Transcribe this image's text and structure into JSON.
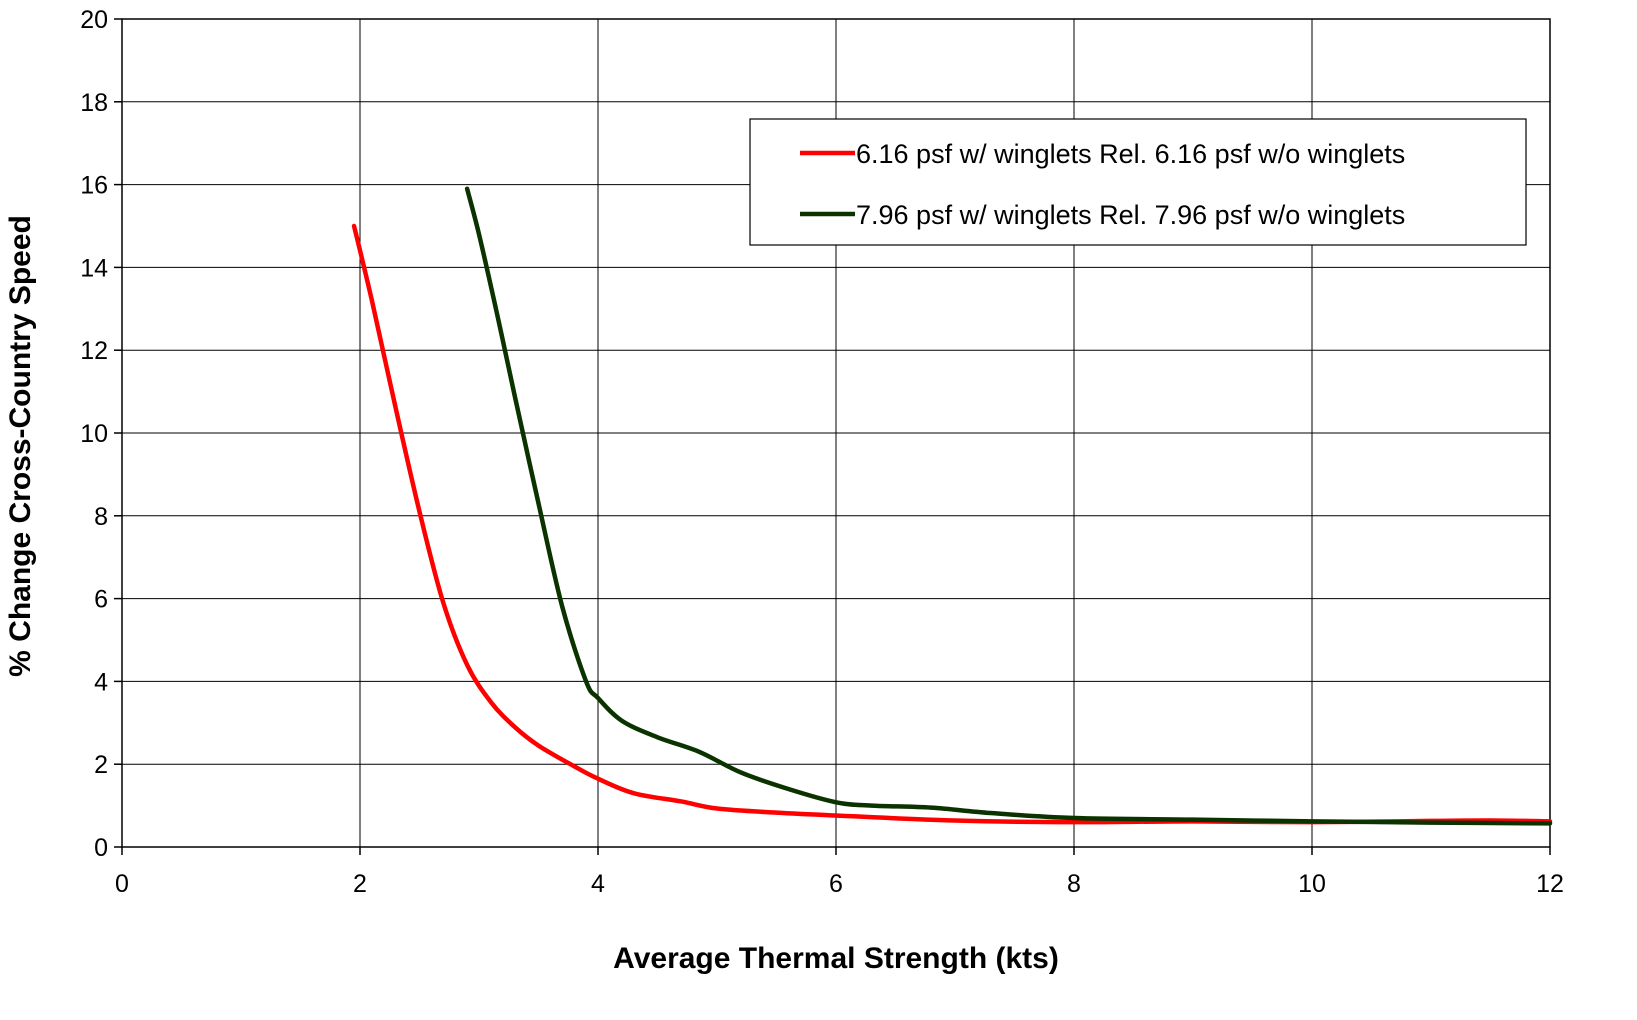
{
  "chart_data": {
    "type": "line",
    "title": "",
    "xlabel": "Average Thermal Strength (kts)",
    "ylabel": "% Change Cross-Country Speed",
    "xlim": [
      0,
      12
    ],
    "ylim": [
      0,
      20
    ],
    "x_ticks": [
      "0",
      "2",
      "4",
      "6",
      "8",
      "10",
      "12"
    ],
    "y_ticks": [
      "0",
      "2",
      "4",
      "6",
      "8",
      "10",
      "12",
      "14",
      "16",
      "18",
      "20"
    ],
    "grid": true,
    "legend_position": "top-right",
    "series": [
      {
        "name": "6.16 psf w/ winglets Rel. 6.16 psf w/o winglets",
        "color": "#ff0000",
        "points": [
          [
            1.95,
            15.0
          ],
          [
            2.1,
            13.2
          ],
          [
            2.3,
            10.6
          ],
          [
            2.5,
            8.1
          ],
          [
            2.7,
            5.9
          ],
          [
            2.9,
            4.4
          ],
          [
            3.1,
            3.5
          ],
          [
            3.3,
            2.9
          ],
          [
            3.5,
            2.45
          ],
          [
            3.8,
            1.95
          ],
          [
            4.0,
            1.65
          ],
          [
            4.3,
            1.3
          ],
          [
            4.7,
            1.1
          ],
          [
            5.0,
            0.93
          ],
          [
            5.5,
            0.83
          ],
          [
            6.0,
            0.76
          ],
          [
            7.0,
            0.64
          ],
          [
            8.0,
            0.6
          ],
          [
            9.0,
            0.62
          ],
          [
            10.0,
            0.6
          ],
          [
            11.0,
            0.63
          ],
          [
            11.5,
            0.64
          ],
          [
            12.0,
            0.62
          ]
        ]
      },
      {
        "name": "7.96 psf w/ winglets Rel. 7.96 psf w/o winglets",
        "color": "#0a3300",
        "points": [
          [
            2.9,
            15.9
          ],
          [
            3.0,
            14.8
          ],
          [
            3.15,
            12.9
          ],
          [
            3.3,
            10.9
          ],
          [
            3.5,
            8.3
          ],
          [
            3.7,
            5.8
          ],
          [
            3.9,
            4.0
          ],
          [
            4.0,
            3.6
          ],
          [
            4.2,
            3.05
          ],
          [
            4.5,
            2.65
          ],
          [
            4.85,
            2.3
          ],
          [
            5.2,
            1.8
          ],
          [
            5.6,
            1.4
          ],
          [
            6.0,
            1.08
          ],
          [
            6.3,
            1.0
          ],
          [
            6.8,
            0.95
          ],
          [
            7.3,
            0.82
          ],
          [
            8.0,
            0.7
          ],
          [
            9.0,
            0.66
          ],
          [
            10.0,
            0.62
          ],
          [
            11.0,
            0.59
          ],
          [
            12.0,
            0.57
          ]
        ]
      }
    ]
  }
}
